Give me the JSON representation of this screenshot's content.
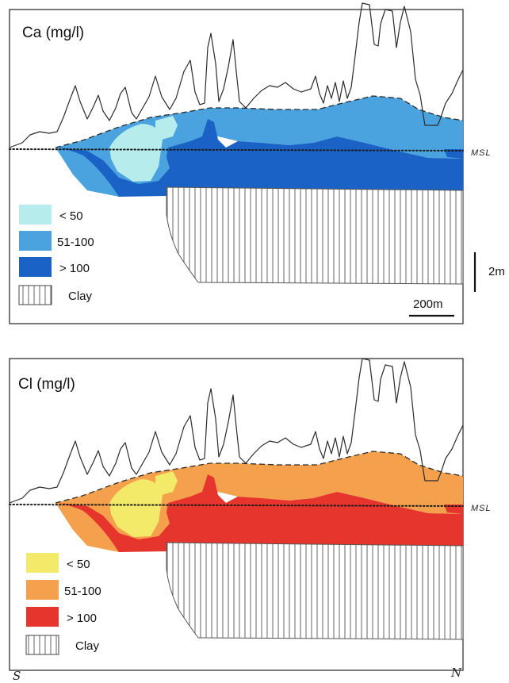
{
  "panels": [
    {
      "title": "Ca (mg/l)",
      "colors": {
        "low": "#b6ecec",
        "mid": "#4aa3df",
        "high": "#1a62c5"
      },
      "legend": [
        {
          "label": "< 50",
          "class": "low"
        },
        {
          "label": "51-100",
          "class": "mid"
        },
        {
          "label": "> 100",
          "class": "high"
        },
        {
          "label": "Clay",
          "class": "clay"
        }
      ]
    },
    {
      "title": "Cl (mg/l)",
      "colors": {
        "low": "#f2ea68",
        "mid": "#f5a04c",
        "high": "#e5352c"
      },
      "legend": [
        {
          "label": "< 50",
          "class": "low"
        },
        {
          "label": "51-100",
          "class": "mid"
        },
        {
          "label": "> 100",
          "class": "high"
        },
        {
          "label": "Clay",
          "class": "clay"
        }
      ]
    }
  ],
  "msl_label": "MSL",
  "scale": {
    "horizontal_label": "200m",
    "vertical_label": "2m"
  },
  "compass": {
    "left": "S",
    "right": "N"
  }
}
